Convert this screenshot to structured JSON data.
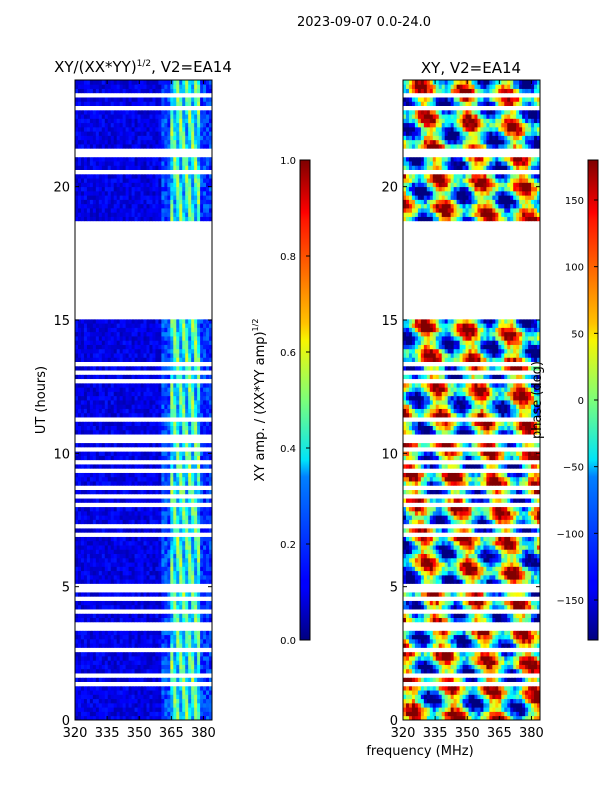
{
  "figure": {
    "suptitle": "2023-09-07 0.0-24.0",
    "shared_xlabel": "frequency (MHz)"
  },
  "chart_data": [
    {
      "type": "heatmap",
      "title_main": "XY/(XX*YY)",
      "title_sup": "1/2",
      "title_tail": ", V2=EA14",
      "xlabel": "frequency (MHz)",
      "ylabel": "UT (hours)",
      "xlim": [
        320,
        384
      ],
      "ylim": [
        0,
        24
      ],
      "xticks": [
        320,
        335,
        350,
        365,
        380
      ],
      "yticks": [
        0,
        5,
        10,
        15,
        20
      ],
      "xtick_labels": [
        "320",
        "335",
        "350",
        "365",
        "380"
      ],
      "ytick_labels": [
        "0",
        "5",
        "10",
        "15",
        "20"
      ],
      "colormap": "jet",
      "colorbar": {
        "label_main": "XY amp. / (XX*YY amp)",
        "label_sup": "1/2",
        "range": [
          0.0,
          1.0
        ],
        "ticks": [
          0.0,
          0.2,
          0.4,
          0.6,
          0.8,
          1.0
        ],
        "tick_labels": [
          "0.0",
          "0.2",
          "0.4",
          "0.6",
          "0.8",
          "1.0"
        ]
      },
      "gap_hours": [
        [
          15.1,
          18.7
        ]
      ]
    },
    {
      "type": "heatmap",
      "title": "XY, V2=EA14",
      "xlabel": "frequency (MHz)",
      "ylabel": "",
      "xlim": [
        320,
        384
      ],
      "ylim": [
        0,
        24
      ],
      "xticks": [
        320,
        335,
        350,
        365,
        380
      ],
      "yticks": [
        0,
        5,
        10,
        15,
        20
      ],
      "xtick_labels": [
        "320",
        "335",
        "350",
        "365",
        "380"
      ],
      "ytick_labels": [
        "0",
        "5",
        "10",
        "15",
        "20"
      ],
      "colormap": "jet",
      "colorbar": {
        "label": "phase (deg)",
        "range": [
          -180,
          180
        ],
        "ticks": [
          -150,
          -100,
          -50,
          0,
          50,
          100,
          150
        ],
        "tick_labels": [
          "−150",
          "−100",
          "−50",
          "0",
          "50",
          "100",
          "150"
        ]
      },
      "gap_hours": [
        [
          15.1,
          18.7
        ]
      ]
    }
  ]
}
